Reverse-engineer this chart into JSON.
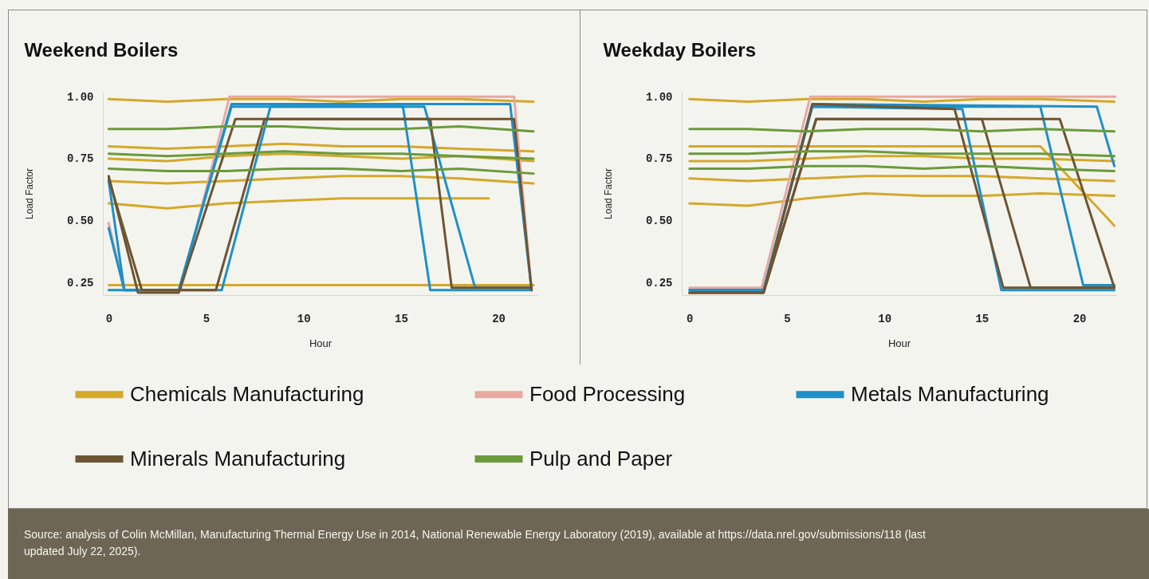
{
  "chart_data": [
    {
      "type": "line",
      "title": "Weekend Boilers",
      "xlabel": "Hour",
      "ylabel": "Load Factor",
      "legend": "bottom",
      "xlim": [
        -0.3,
        22
      ],
      "xticks": [
        0,
        5,
        10,
        15,
        20
      ],
      "ylim": [
        0.2,
        1.02
      ],
      "yticks": [
        {
          "value": 0.25,
          "label": "0.25"
        },
        {
          "value": 0.5,
          "label": "0.50"
        },
        {
          "value": 0.75,
          "label": "0.75"
        },
        {
          "value": 1,
          "label": "1.00"
        }
      ],
      "annotations": [
        "Source: analysis of Colin McMillan, Manufacturing Thermal Energy Use in 2014, National Renewable Energy Laboratory (2019), available at https://data.nrel.gov/submissions/118 (last updated July 22, 2025)."
      ],
      "series": [
        {
          "name": "Chemicals Manufacturing",
          "color": "#d4a82a",
          "x": [
            0,
            3,
            6,
            9,
            12,
            15,
            18,
            21.8
          ],
          "values": [
            0.99,
            0.98,
            0.99,
            0.99,
            0.98,
            0.99,
            0.99,
            0.98
          ]
        },
        {
          "color": "#d4a82a",
          "x": [
            0,
            3,
            6,
            9,
            12,
            15,
            18,
            21.8
          ],
          "values": [
            0.75,
            0.74,
            0.76,
            0.77,
            0.76,
            0.75,
            0.76,
            0.74
          ]
        },
        {
          "color": "#d4a82a",
          "x": [
            0,
            3,
            6,
            9,
            12,
            15,
            18,
            21.8
          ],
          "values": [
            0.8,
            0.79,
            0.8,
            0.81,
            0.8,
            0.8,
            0.79,
            0.78
          ]
        },
        {
          "color": "#d4a82a",
          "x": [
            0,
            3,
            6,
            9,
            12,
            15,
            18,
            21.8
          ],
          "values": [
            0.66,
            0.65,
            0.66,
            0.67,
            0.68,
            0.68,
            0.67,
            0.65
          ]
        },
        {
          "color": "#d4a82a",
          "x": [
            0,
            3,
            6,
            9,
            12,
            15,
            19.5
          ],
          "values": [
            0.57,
            0.55,
            0.57,
            0.58,
            0.59,
            0.59,
            0.59
          ]
        },
        {
          "color": "#d4a82a",
          "x": [
            0,
            3,
            6,
            9,
            12,
            15,
            18,
            21.8
          ],
          "values": [
            0.24,
            0.24,
            0.24,
            0.24,
            0.24,
            0.24,
            0.24,
            0.24
          ]
        },
        {
          "name": "Food Processing",
          "color": "#e8a8a0",
          "x": [
            0,
            0.8,
            3.7,
            6.2,
            20.8,
            21.7
          ],
          "values": [
            0.49,
            0.22,
            0.22,
            1.0,
            1.0,
            0.22
          ]
        },
        {
          "name": "Metals Manufacturing",
          "color": "#1e90c8",
          "x": [
            0,
            0.8,
            3.6,
            6.3,
            20.6,
            21.7
          ],
          "values": [
            0.47,
            0.22,
            0.22,
            0.97,
            0.97,
            0.22
          ]
        },
        {
          "color": "#1e90c8",
          "x": [
            0,
            0.8,
            5.8,
            8.3,
            15.1,
            16.5,
            21.7
          ],
          "values": [
            0.66,
            0.22,
            0.22,
            0.96,
            0.96,
            0.22,
            0.22
          ]
        },
        {
          "color": "#1e90c8",
          "x": [
            0,
            1,
            3.6,
            6.3,
            16.2,
            18.8,
            21.7
          ],
          "values": [
            0.22,
            0.22,
            0.22,
            0.96,
            0.96,
            0.23,
            0.23
          ]
        },
        {
          "name": "Minerals Manufacturing",
          "color": "#6e5533",
          "x": [
            0,
            1.5,
            3.6,
            6.5,
            20.8,
            21.7
          ],
          "values": [
            0.68,
            0.21,
            0.21,
            0.91,
            0.91,
            0.22
          ]
        },
        {
          "color": "#6e5533",
          "x": [
            0,
            1.7,
            5.5,
            8,
            16.5,
            17.6,
            21.7
          ],
          "values": [
            0.67,
            0.22,
            0.22,
            0.91,
            0.91,
            0.23,
            0.23
          ]
        },
        {
          "name": "Pulp and Paper",
          "color": "#6a9a3a",
          "x": [
            0,
            3,
            6,
            9,
            12,
            15,
            18,
            21.8
          ],
          "values": [
            0.87,
            0.87,
            0.88,
            0.88,
            0.87,
            0.87,
            0.88,
            0.86
          ]
        },
        {
          "color": "#6a9a3a",
          "x": [
            0,
            3,
            6,
            9,
            12,
            15,
            18,
            21.8
          ],
          "values": [
            0.71,
            0.7,
            0.7,
            0.71,
            0.71,
            0.7,
            0.71,
            0.69
          ]
        },
        {
          "color": "#6a9a3a",
          "x": [
            0,
            3,
            6,
            9,
            12,
            15,
            18,
            21.8
          ],
          "values": [
            0.77,
            0.76,
            0.77,
            0.78,
            0.77,
            0.77,
            0.76,
            0.75
          ]
        }
      ]
    },
    {
      "type": "line",
      "title": "Weekday Boilers",
      "xlabel": "Hour",
      "ylabel": "Load Factor",
      "legend": "bottom",
      "xlim": [
        -0.4,
        21.9
      ],
      "xticks": [
        0,
        5,
        10,
        15,
        20
      ],
      "ylim": [
        0.2,
        1.02
      ],
      "yticks": [
        {
          "value": 0.25,
          "label": "0.25"
        },
        {
          "value": 0.5,
          "label": "0.50"
        },
        {
          "value": 0.75,
          "label": "0.75"
        },
        {
          "value": 1,
          "label": "1.00"
        }
      ],
      "series": [
        {
          "name": "Chemicals Manufacturing",
          "color": "#d4a82a",
          "x": [
            0,
            3,
            6,
            9,
            12,
            15,
            18,
            21.8
          ],
          "values": [
            0.99,
            0.98,
            0.99,
            0.99,
            0.98,
            0.99,
            0.99,
            0.98
          ]
        },
        {
          "color": "#d4a82a",
          "x": [
            0,
            3,
            6,
            9,
            12,
            15,
            18,
            21.8
          ],
          "values": [
            0.74,
            0.74,
            0.75,
            0.76,
            0.76,
            0.75,
            0.75,
            0.74
          ]
        },
        {
          "color": "#d4a82a",
          "x": [
            0,
            3,
            6,
            9,
            12,
            15,
            18,
            21.8
          ],
          "values": [
            0.67,
            0.66,
            0.67,
            0.68,
            0.68,
            0.68,
            0.67,
            0.66
          ]
        },
        {
          "color": "#d4a82a",
          "x": [
            0,
            3,
            6,
            9,
            12,
            15,
            18,
            21.8
          ],
          "values": [
            0.57,
            0.56,
            0.59,
            0.61,
            0.6,
            0.6,
            0.61,
            0.6
          ]
        },
        {
          "color": "#d4a82a",
          "x": [
            0,
            6,
            18,
            21.8
          ],
          "values": [
            0.8,
            0.8,
            0.8,
            0.48
          ]
        },
        {
          "name": "Food Processing",
          "color": "#e8a8a0",
          "x": [
            0,
            3.7,
            6.2,
            21.9
          ],
          "values": [
            0.23,
            0.23,
            1.0,
            1.0
          ]
        },
        {
          "name": "Metals Manufacturing",
          "color": "#1e90c8",
          "x": [
            0,
            3.8,
            6.3,
            20.9,
            21.8
          ],
          "values": [
            0.22,
            0.22,
            0.97,
            0.96,
            0.72
          ]
        },
        {
          "color": "#1e90c8",
          "x": [
            0,
            3.8,
            6.3,
            14,
            16,
            21.8
          ],
          "values": [
            0.22,
            0.22,
            0.96,
            0.95,
            0.22,
            0.22
          ]
        },
        {
          "color": "#1e90c8",
          "x": [
            0,
            3.8,
            6.3,
            18,
            20.2,
            21.8
          ],
          "values": [
            0.22,
            0.22,
            0.96,
            0.96,
            0.24,
            0.24
          ]
        },
        {
          "name": "Minerals Manufacturing",
          "color": "#6e5533",
          "x": [
            0,
            3.8,
            6.5,
            15,
            17.5,
            21.8
          ],
          "values": [
            0.21,
            0.21,
            0.91,
            0.91,
            0.23,
            0.23
          ]
        },
        {
          "color": "#6e5533",
          "x": [
            0,
            3.8,
            6.5,
            19,
            21.8
          ],
          "values": [
            0.21,
            0.21,
            0.91,
            0.91,
            0.23
          ]
        },
        {
          "color": "#6e5533",
          "x": [
            0,
            3.8,
            6.3,
            13.6,
            16.1,
            21.8
          ],
          "values": [
            0.21,
            0.21,
            0.97,
            0.95,
            0.23,
            0.23
          ]
        },
        {
          "name": "Pulp and Paper",
          "color": "#6a9a3a",
          "x": [
            0,
            3,
            6,
            9,
            12,
            15,
            18,
            21.8
          ],
          "values": [
            0.87,
            0.87,
            0.86,
            0.87,
            0.87,
            0.86,
            0.87,
            0.86
          ]
        },
        {
          "color": "#6a9a3a",
          "x": [
            0,
            3,
            6,
            9,
            12,
            15,
            18,
            21.8
          ],
          "values": [
            0.71,
            0.71,
            0.72,
            0.72,
            0.71,
            0.72,
            0.71,
            0.7
          ]
        },
        {
          "color": "#6a9a3a",
          "x": [
            0,
            3,
            6,
            9,
            12,
            15,
            18,
            21.8
          ],
          "values": [
            0.77,
            0.77,
            0.78,
            0.78,
            0.77,
            0.77,
            0.77,
            0.76
          ]
        }
      ]
    }
  ]
}
